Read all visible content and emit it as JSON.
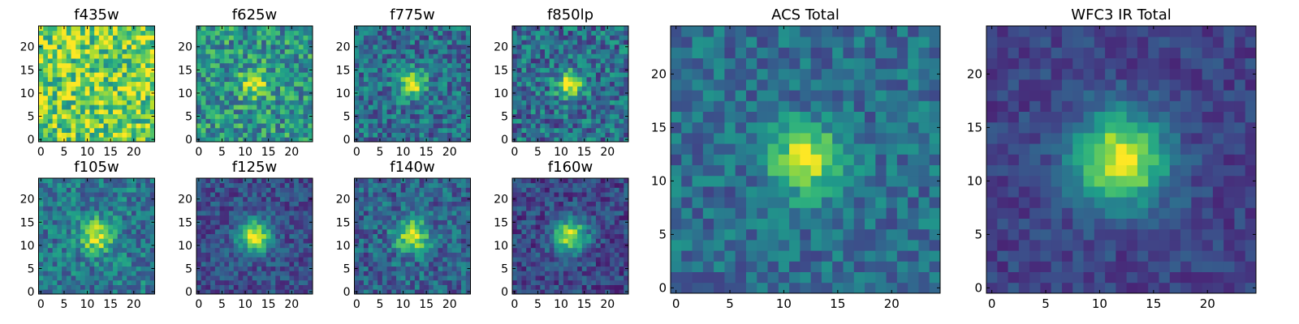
{
  "chart_data": [
    {
      "type": "heatmap",
      "title": "f435w",
      "rows": 25,
      "cols": 25,
      "xlim": [
        0,
        24
      ],
      "ylim": [
        0,
        24
      ],
      "xticks": [
        0,
        5,
        10,
        15,
        20
      ],
      "yticks": [
        0,
        5,
        10,
        15,
        20
      ],
      "colormap": "viridis",
      "source_center": [
        12,
        12
      ],
      "peak_strength": 0.0,
      "source_width": 2.0,
      "background_level": 0.78,
      "noise_level": 0.3,
      "seed": 11
    },
    {
      "type": "heatmap",
      "title": "f625w",
      "rows": 25,
      "cols": 25,
      "xlim": [
        0,
        24
      ],
      "ylim": [
        0,
        24
      ],
      "xticks": [
        0,
        5,
        10,
        15,
        20
      ],
      "yticks": [
        0,
        5,
        10,
        15,
        20
      ],
      "colormap": "viridis",
      "source_center": [
        12,
        12
      ],
      "peak_strength": 0.45,
      "source_width": 2.0,
      "background_level": 0.52,
      "noise_level": 0.26,
      "seed": 23
    },
    {
      "type": "heatmap",
      "title": "f775w",
      "rows": 25,
      "cols": 25,
      "xlim": [
        0,
        24
      ],
      "ylim": [
        0,
        24
      ],
      "xticks": [
        0,
        5,
        10,
        15,
        20
      ],
      "yticks": [
        0,
        5,
        10,
        15,
        20
      ],
      "colormap": "viridis",
      "source_center": [
        12,
        12
      ],
      "peak_strength": 0.62,
      "source_width": 2.0,
      "background_level": 0.36,
      "noise_level": 0.22,
      "seed": 37
    },
    {
      "type": "heatmap",
      "title": "f850lp",
      "rows": 25,
      "cols": 25,
      "xlim": [
        0,
        24
      ],
      "ylim": [
        0,
        24
      ],
      "xticks": [
        0,
        5,
        10,
        15,
        20
      ],
      "yticks": [
        0,
        5,
        10,
        15,
        20
      ],
      "colormap": "viridis",
      "source_center": [
        12,
        12
      ],
      "peak_strength": 0.62,
      "source_width": 2.0,
      "background_level": 0.36,
      "noise_level": 0.24,
      "seed": 41
    },
    {
      "type": "heatmap",
      "title": "f105w",
      "rows": 25,
      "cols": 25,
      "xlim": [
        0,
        24
      ],
      "ylim": [
        0,
        24
      ],
      "xticks": [
        0,
        5,
        10,
        15,
        20
      ],
      "yticks": [
        0,
        5,
        10,
        15,
        20
      ],
      "colormap": "viridis",
      "source_center": [
        12,
        12
      ],
      "peak_strength": 0.55,
      "source_width": 2.5,
      "background_level": 0.4,
      "noise_level": 0.2,
      "seed": 53
    },
    {
      "type": "heatmap",
      "title": "f125w",
      "rows": 25,
      "cols": 25,
      "xlim": [
        0,
        24
      ],
      "ylim": [
        0,
        24
      ],
      "xticks": [
        0,
        5,
        10,
        15,
        20
      ],
      "yticks": [
        0,
        5,
        10,
        15,
        20
      ],
      "colormap": "viridis",
      "source_center": [
        12,
        12
      ],
      "peak_strength": 0.72,
      "source_width": 2.5,
      "background_level": 0.24,
      "noise_level": 0.15,
      "seed": 67
    },
    {
      "type": "heatmap",
      "title": "f140w",
      "rows": 25,
      "cols": 25,
      "xlim": [
        0,
        24
      ],
      "ylim": [
        0,
        24
      ],
      "xticks": [
        0,
        5,
        10,
        15,
        20
      ],
      "yticks": [
        0,
        5,
        10,
        15,
        20
      ],
      "colormap": "viridis",
      "source_center": [
        12,
        12
      ],
      "peak_strength": 0.62,
      "source_width": 2.5,
      "background_level": 0.32,
      "noise_level": 0.2,
      "seed": 79
    },
    {
      "type": "heatmap",
      "title": "f160w",
      "rows": 25,
      "cols": 25,
      "xlim": [
        0,
        24
      ],
      "ylim": [
        0,
        24
      ],
      "xticks": [
        0,
        5,
        10,
        15,
        20
      ],
      "yticks": [
        0,
        5,
        10,
        15,
        20
      ],
      "colormap": "viridis",
      "source_center": [
        12,
        12
      ],
      "peak_strength": 0.72,
      "source_width": 2.5,
      "background_level": 0.22,
      "noise_level": 0.16,
      "seed": 83
    },
    {
      "type": "heatmap",
      "title": "ACS Total",
      "rows": 25,
      "cols": 25,
      "xlim": [
        0,
        24
      ],
      "ylim": [
        0,
        24
      ],
      "xticks": [
        0,
        5,
        10,
        15,
        20
      ],
      "yticks": [
        0,
        5,
        10,
        15,
        20
      ],
      "colormap": "viridis",
      "source_center": [
        12,
        12
      ],
      "peak_strength": 0.62,
      "source_width": 2.2,
      "background_level": 0.36,
      "noise_level": 0.16,
      "seed": 97
    },
    {
      "type": "heatmap",
      "title": "WFC3 IR Total",
      "rows": 25,
      "cols": 25,
      "xlim": [
        0,
        24
      ],
      "ylim": [
        0,
        24
      ],
      "xticks": [
        0,
        5,
        10,
        15,
        20
      ],
      "yticks": [
        0,
        5,
        10,
        15,
        20
      ],
      "colormap": "viridis",
      "source_center": [
        12,
        12
      ],
      "peak_strength": 0.78,
      "source_width": 3.0,
      "background_level": 0.2,
      "noise_level": 0.1,
      "seed": 101
    }
  ],
  "colors": {
    "viridis": [
      "#440154",
      "#482878",
      "#3e4989",
      "#31688e",
      "#26828e",
      "#1f9e89",
      "#35b779",
      "#6ece58",
      "#b5de2b",
      "#fde725"
    ],
    "axes_edge": "#000000",
    "background": "#ffffff"
  }
}
